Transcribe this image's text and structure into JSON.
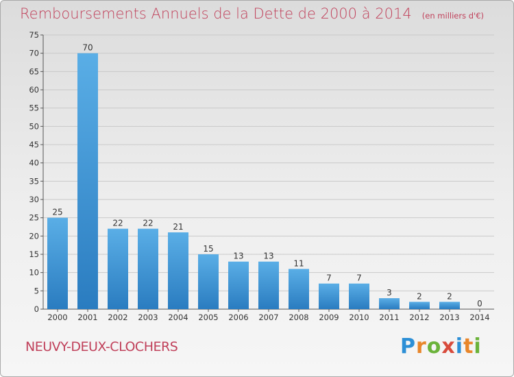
{
  "header": {
    "title": "Remboursements Annuels de la Dette de 2000 à 2014",
    "unit": "(en milliers d'€)"
  },
  "footer": {
    "city": "NEUVY-DEUX-CLOCHERS",
    "logo": "Proxiti"
  },
  "colors": {
    "title": "#c0405a",
    "bar_light": "#5aaee6",
    "bar_dark": "#2a7cc0",
    "logo": [
      "#2c8fd6",
      "#e8862a",
      "#6bb33a",
      "#d84b3c"
    ]
  },
  "chart_data": {
    "type": "bar",
    "title": "Remboursements Annuels de la Dette de 2000 à 2014",
    "subtitle": "(en milliers d'€)",
    "xlabel": "",
    "ylabel": "",
    "categories": [
      "2000",
      "2001",
      "2002",
      "2003",
      "2004",
      "2005",
      "2006",
      "2007",
      "2008",
      "2009",
      "2010",
      "2011",
      "2012",
      "2013",
      "2014"
    ],
    "values": [
      25,
      70,
      22,
      22,
      21,
      15,
      13,
      13,
      11,
      7,
      7,
      3,
      2,
      2,
      0
    ],
    "ylim": [
      0,
      75
    ],
    "yticks": [
      0,
      5,
      10,
      15,
      20,
      25,
      30,
      35,
      40,
      45,
      50,
      55,
      60,
      65,
      70,
      75
    ],
    "grid": true,
    "data_labels": true,
    "legend": "none"
  }
}
